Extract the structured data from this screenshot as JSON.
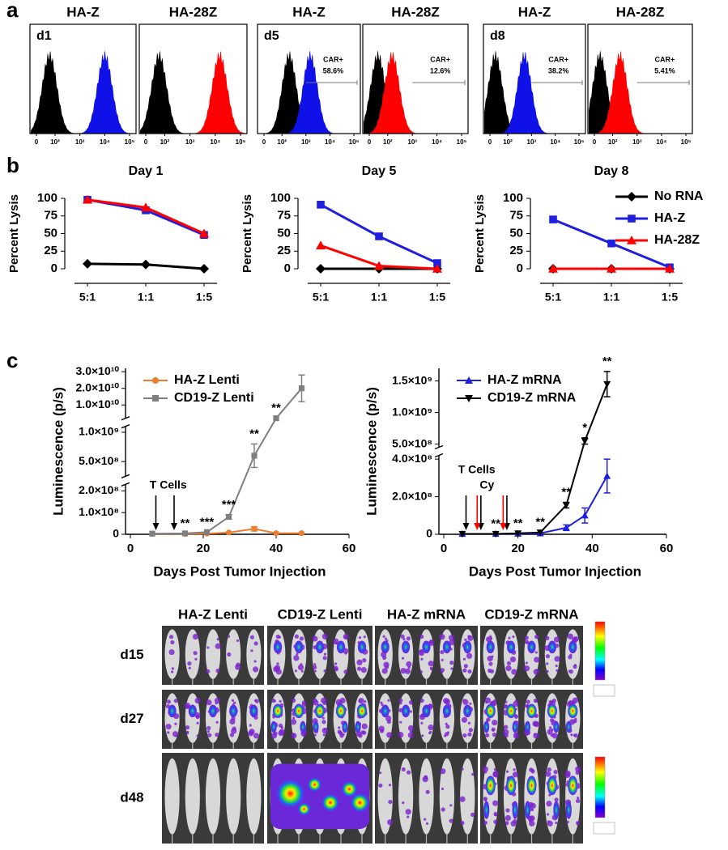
{
  "panel_labels": [
    "a",
    "b",
    "c"
  ],
  "chart_data": [
    {
      "type": "histogram-overlay",
      "label": "d1",
      "title": "HA-Z",
      "title_color": "#1f1fe0",
      "series": [
        {
          "color": "#000000",
          "peak": 60
        },
        {
          "color": "#1010e8",
          "peak": 10000
        }
      ],
      "xlim": [
        0,
        100000
      ],
      "xticks": [
        0,
        {
          "value": 100,
          "label": "10²"
        },
        {
          "value": 1000,
          "label": "10³"
        },
        {
          "value": 10000,
          "label": "10⁴"
        },
        {
          "value": 100000,
          "label": "10⁵"
        }
      ]
    },
    {
      "type": "histogram-overlay",
      "title": "HA-28Z",
      "title_color": "#e81010",
      "series": [
        {
          "color": "#000000",
          "peak": 60
        },
        {
          "color": "#ff0000",
          "peak": 15000
        }
      ],
      "xlim": [
        0,
        100000
      ],
      "xticks": [
        0,
        {
          "value": 100,
          "label": "10²"
        },
        {
          "value": 1000,
          "label": "10³"
        },
        {
          "value": 10000,
          "label": "10⁴"
        },
        {
          "value": 100000,
          "label": "10⁵"
        }
      ]
    },
    {
      "type": "histogram-overlay",
      "label": "d5",
      "title": "HA-Z",
      "title_color": "#1f1fe0",
      "series": [
        {
          "color": "#000000",
          "peak": 200
        },
        {
          "color": "#1010e8",
          "peak": 1500
        }
      ],
      "xlim": [
        0,
        100000
      ],
      "xticks": [
        0,
        {
          "value": 100,
          "label": "10²"
        },
        {
          "value": 1000,
          "label": "10³"
        },
        {
          "value": 10000,
          "label": "10⁴"
        },
        {
          "value": 100000,
          "label": "10⁵"
        }
      ],
      "gate": {
        "from": 1000,
        "label": "CAR+",
        "text": "58.6%"
      }
    },
    {
      "type": "histogram-overlay",
      "title": "HA-28Z",
      "title_color": "#e81010",
      "series": [
        {
          "color": "#000000",
          "peak": 40
        },
        {
          "color": "#ff0000",
          "peak": 150
        }
      ],
      "xlim": [
        0,
        100000
      ],
      "xticks": [
        0,
        {
          "value": 100,
          "label": "10²"
        },
        {
          "value": 1000,
          "label": "10³"
        },
        {
          "value": 10000,
          "label": "10⁴"
        },
        {
          "value": 100000,
          "label": "10⁵"
        }
      ],
      "gate": {
        "from": 1000,
        "label": "CAR+",
        "text": "12.6%"
      }
    },
    {
      "type": "histogram-overlay",
      "label": "d8",
      "title": "HA-Z",
      "title_color": "#1f1fe0",
      "series": [
        {
          "color": "#000000",
          "peak": 30
        },
        {
          "color": "#1010e8",
          "peak": 500
        }
      ],
      "xlim": [
        0,
        100000
      ],
      "xticks": [
        0,
        {
          "value": 100,
          "label": "10²"
        },
        {
          "value": 1000,
          "label": "10³"
        },
        {
          "value": 10000,
          "label": "10⁴"
        },
        {
          "value": 100000,
          "label": "10⁵"
        }
      ],
      "gate": {
        "from": 1000,
        "label": "CAR+",
        "text": "38.2%"
      }
    },
    {
      "type": "histogram-overlay",
      "title": "HA-28Z",
      "title_color": "#e81010",
      "series": [
        {
          "color": "#000000",
          "peak": 30
        },
        {
          "color": "#ff0000",
          "peak": 200
        }
      ],
      "xlim": [
        0,
        100000
      ],
      "xticks": [
        0,
        {
          "value": 100,
          "label": "10²"
        },
        {
          "value": 1000,
          "label": "10³"
        },
        {
          "value": 10000,
          "label": "10⁴"
        },
        {
          "value": 100000,
          "label": "10⁵"
        }
      ],
      "gate": {
        "from": 1000,
        "label": "CAR+",
        "text": "5.41%"
      }
    },
    {
      "type": "line",
      "title": "Day 1",
      "ylabel": "Percent Lysis",
      "categories": [
        "5:1",
        "1:1",
        "1:5"
      ],
      "ylim": [
        0,
        100
      ],
      "yticks": [
        0,
        25,
        50,
        75,
        100
      ],
      "series": [
        {
          "color": "#000000",
          "marker": "diamond",
          "values": [
            7,
            6,
            0
          ]
        },
        {
          "color": "#1f1fe0",
          "marker": "square",
          "values": [
            98,
            83,
            48
          ]
        },
        {
          "color": "#ff0000",
          "marker": "triangle",
          "values": [
            98,
            87,
            50
          ]
        }
      ]
    },
    {
      "type": "line",
      "title": "Day 5",
      "ylabel": "Percent Lysis",
      "categories": [
        "5:1",
        "1:1",
        "1:5"
      ],
      "ylim": [
        0,
        100
      ],
      "yticks": [
        0,
        25,
        50,
        75,
        100
      ],
      "series": [
        {
          "color": "#000000",
          "marker": "diamond",
          "values": [
            0,
            0,
            0
          ]
        },
        {
          "color": "#1f1fe0",
          "marker": "square",
          "values": [
            91,
            46,
            8
          ]
        },
        {
          "color": "#ff0000",
          "marker": "triangle",
          "values": [
            33,
            4,
            0
          ]
        }
      ]
    },
    {
      "type": "line",
      "title": "Day 8",
      "ylabel": "Percent Lysis",
      "categories": [
        "5:1",
        "1:1",
        "1:5"
      ],
      "ylim": [
        0,
        100
      ],
      "yticks": [
        0,
        25,
        50,
        75,
        100
      ],
      "legend": "right",
      "series": [
        {
          "name": "No RNA",
          "color": "#000000",
          "marker": "diamond",
          "values": [
            0,
            0,
            0
          ]
        },
        {
          "name": "HA-Z",
          "color": "#1f1fe0",
          "marker": "square",
          "values": [
            70,
            36,
            2
          ]
        },
        {
          "name": "HA-28Z",
          "color": "#ff0000",
          "marker": "triangle",
          "values": [
            0,
            0,
            0
          ]
        }
      ]
    },
    {
      "type": "broken-line",
      "xlabel": "Days Post Tumor Injection",
      "ylabel": "Luminescence (p/s)",
      "x": [
        6,
        15,
        21,
        27,
        34,
        40,
        47
      ],
      "xlim": [
        0,
        60
      ],
      "xticks": [
        0,
        20,
        40,
        60
      ],
      "ysegments": [
        {
          "ylim": [
            0,
            230000000
          ],
          "yticks": [
            0,
            {
              "value": 100000000,
              "label": "1.0×10⁸"
            },
            {
              "value": 200000000,
              "label": "2.0×10⁸"
            }
          ]
        },
        {
          "ylim": [
            250000000,
            1100000000
          ],
          "yticks": [
            {
              "value": 500000000,
              "label": "5.0×10⁸"
            },
            {
              "value": 1000000000,
              "label": "1.0×10⁹"
            }
          ]
        },
        {
          "ylim": [
            2000000000,
            32000000000
          ],
          "yticks": [
            {
              "value": 10000000000,
              "label": "1.0×10¹⁰"
            },
            {
              "value": 20000000000,
              "label": "2.0×10¹⁰"
            },
            {
              "value": 30000000000,
              "label": "3.0×10¹⁰"
            }
          ]
        }
      ],
      "legend": "upper left",
      "series": [
        {
          "name": "HA-Z Lenti",
          "color": "#ed7d31",
          "marker": "circle",
          "values": [
            2000000,
            2000000,
            3000000,
            8000000,
            25000000,
            5000000,
            5000000
          ],
          "errors": [
            null,
            null,
            null,
            null,
            10000000,
            null,
            null
          ]
        },
        {
          "name": "CD19-Z Lenti",
          "color": "#7f7f7f",
          "marker": "square",
          "values": [
            3000000,
            4000000,
            10000000,
            80000000,
            600000000,
            2000000000,
            20000000000
          ],
          "errors": [
            null,
            null,
            null,
            10000000,
            200000000,
            null,
            8000000000
          ]
        }
      ],
      "significance": [
        null,
        "**",
        "***",
        "***",
        "**",
        "**",
        null
      ],
      "treatments": [
        {
          "label": "T Cells",
          "color": "#000000",
          "days": [
            7,
            12
          ]
        }
      ]
    },
    {
      "type": "broken-line",
      "xlabel": "Days Post Tumor Injection",
      "ylabel": "Luminescence (p/s)",
      "x": [
        5,
        14,
        20,
        26,
        33,
        38,
        44
      ],
      "xlim": [
        0,
        60
      ],
      "xticks": [
        0,
        20,
        40,
        60
      ],
      "ysegments": [
        {
          "ylim": [
            0,
            420000000
          ],
          "yticks": [
            0,
            {
              "value": 200000000,
              "label": "2.0×10⁸"
            },
            {
              "value": 400000000,
              "label": "4.0×10⁸"
            }
          ]
        },
        {
          "ylim": [
            450000000,
            1700000000
          ],
          "yticks": [
            {
              "value": 500000000,
              "label": "5.0×10⁸"
            },
            {
              "value": 1000000000,
              "label": "1.0×10⁹"
            },
            {
              "value": 1500000000,
              "label": "1.5×10⁹"
            }
          ]
        }
      ],
      "legend": "upper left",
      "series": [
        {
          "name": "HA-Z mRNA",
          "color": "#1f1fe0",
          "marker": "triangle",
          "values": [
            2000000,
            2000000,
            3000000,
            5000000,
            35000000,
            100000000,
            310000000
          ],
          "errors": [
            null,
            null,
            null,
            null,
            15000000,
            40000000,
            90000000
          ]
        },
        {
          "name": "CD19-Z mRNA",
          "color": "#000000",
          "marker": "triangle-down",
          "values": [
            2000000,
            2000000,
            5000000,
            10000000,
            155000000,
            550000000,
            1450000000
          ],
          "errors": [
            null,
            null,
            null,
            null,
            15000000,
            50000000,
            200000000
          ]
        }
      ],
      "significance": [
        null,
        "**",
        "**",
        "**",
        "**",
        "*",
        "**"
      ],
      "treatments": [
        {
          "label": "T Cells",
          "color": "#000000",
          "days": [
            6,
            10,
            17
          ]
        },
        {
          "label": "Cy",
          "color": "#ff0000",
          "days": [
            9,
            16
          ]
        }
      ]
    }
  ],
  "mouse_images": {
    "columns": [
      {
        "label": "HA-Z Lenti",
        "color": "#ed7d31"
      },
      {
        "label": "CD19-Z Lenti",
        "color": "#8c8c8c"
      },
      {
        "label": "HA-Z mRNA",
        "color": "#1f1fe0"
      },
      {
        "label": "CD19-Z mRNA",
        "color": "#000000"
      }
    ],
    "rows": [
      "d15",
      "d27",
      "d48"
    ]
  }
}
